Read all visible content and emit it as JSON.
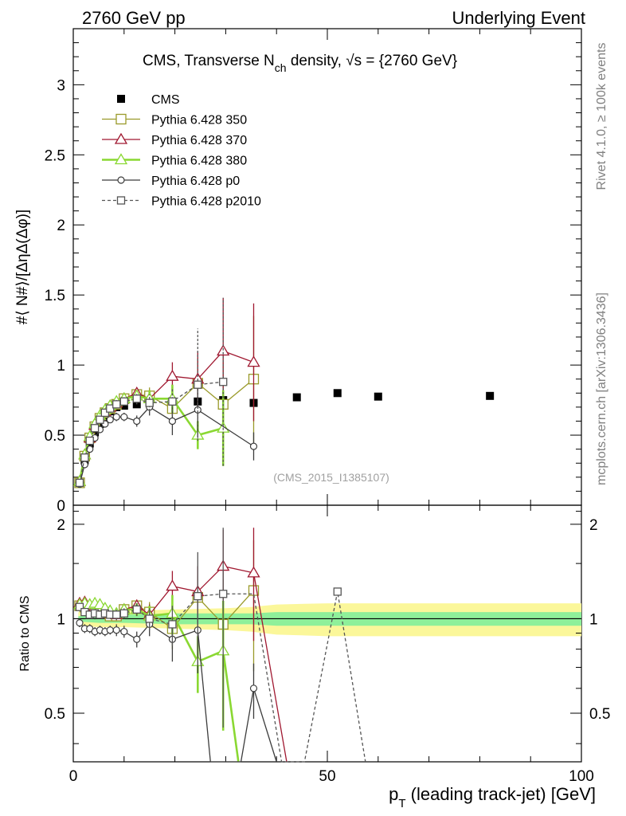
{
  "header": {
    "left": "2760 GeV pp",
    "right": "Underlying Event"
  },
  "side_labels": {
    "rivet": "Rivet 4.1.0, ≥ 100k events",
    "mcplots": "mcplots.cern.ch [arXiv:1306.3436]"
  },
  "chart_data": [
    {
      "type": "scatter",
      "panel": "main",
      "title": "CMS, Transverse N_ch density, √s = {2760 GeV}",
      "title_parts": {
        "a": "CMS, Transverse N",
        "sub": "ch",
        "b": " density, ",
        "c": "s = {2760 GeV}"
      },
      "ylabel": "#⟨ N#⟩/[ΔηΔ(Δφ)]",
      "watermark": "(CMS_2015_I1385107)",
      "xlim": [
        0,
        100
      ],
      "ylim": [
        0,
        3.4
      ],
      "yticks": [
        0,
        0.5,
        1,
        1.5,
        2,
        2.5,
        3
      ],
      "yticklabels": [
        "0",
        "0.5",
        "1",
        "1.5",
        "2",
        "2.5",
        "3"
      ],
      "series": [
        {
          "name": "CMS",
          "key": "cms",
          "color": "#000000",
          "style": "data",
          "x": [
            1.25,
            2.25,
            3.25,
            4.25,
            5.25,
            6.25,
            7.25,
            8.5,
            10,
            12.5,
            15,
            19.5,
            24.5,
            29.5,
            35.5,
            44,
            52,
            60,
            82
          ],
          "y": [
            0.16,
            0.32,
            0.44,
            0.52,
            0.58,
            0.63,
            0.67,
            0.7,
            0.71,
            0.72,
            0.74,
            0.73,
            0.74,
            0.75,
            0.73,
            0.77,
            0.8,
            0.775,
            0.78
          ]
        },
        {
          "name": "Pythia 6.428 350",
          "key": "p350",
          "color": "#9a9a2a",
          "style": "square",
          "x": [
            1.25,
            2.25,
            3.25,
            4.25,
            5.25,
            6.25,
            7.25,
            8.5,
            10,
            12.5,
            15,
            19.5,
            24.5,
            29.5,
            35.5
          ],
          "y": [
            0.16,
            0.35,
            0.48,
            0.56,
            0.62,
            0.66,
            0.69,
            0.72,
            0.76,
            0.79,
            0.78,
            0.69,
            0.87,
            0.72,
            0.9
          ],
          "err": [
            0.01,
            0.02,
            0.02,
            0.02,
            0.02,
            0.02,
            0.02,
            0.03,
            0.03,
            0.04,
            0.06,
            0.1,
            0.18,
            0.3,
            0.45
          ]
        },
        {
          "name": "Pythia 6.428 370",
          "key": "p370",
          "color": "#a01830",
          "style": "triangle",
          "x": [
            1.25,
            2.25,
            3.25,
            4.25,
            5.25,
            6.25,
            7.25,
            8.5,
            10,
            12.5,
            15,
            19.5,
            24.5,
            29.5,
            35.5
          ],
          "y": [
            0.17,
            0.36,
            0.48,
            0.57,
            0.63,
            0.67,
            0.7,
            0.73,
            0.76,
            0.8,
            0.76,
            0.92,
            0.9,
            1.1,
            1.02
          ],
          "err": [
            0.01,
            0.02,
            0.02,
            0.02,
            0.02,
            0.02,
            0.02,
            0.03,
            0.03,
            0.04,
            0.06,
            0.1,
            0.2,
            0.38,
            0.42
          ]
        },
        {
          "name": "Pythia 6.428 380",
          "key": "p380",
          "color": "#8ad832",
          "style": "triangle",
          "x": [
            1.25,
            2.25,
            3.25,
            4.25,
            5.25,
            6.25,
            7.25,
            8.5,
            10,
            12.5,
            15,
            19.5,
            24.5,
            29.5
          ],
          "y": [
            0.17,
            0.36,
            0.49,
            0.58,
            0.64,
            0.68,
            0.71,
            0.74,
            0.76,
            0.78,
            0.76,
            0.76,
            0.5,
            0.55
          ],
          "err": [
            0.01,
            0.02,
            0.02,
            0.02,
            0.02,
            0.02,
            0.02,
            0.03,
            0.03,
            0.04,
            0.06,
            0.1,
            0.1,
            0.27
          ]
        },
        {
          "name": "Pythia 6.428 p0",
          "key": "p0",
          "color": "#3c3c3c",
          "style": "circle",
          "x": [
            1.25,
            2.25,
            3.25,
            4.25,
            5.25,
            6.25,
            7.25,
            8.5,
            10,
            12.5,
            15,
            19.5,
            24.5,
            35.5
          ],
          "y": [
            0.15,
            0.29,
            0.4,
            0.48,
            0.54,
            0.58,
            0.61,
            0.63,
            0.63,
            0.6,
            0.7,
            0.6,
            0.68,
            0.42
          ],
          "err": [
            0.01,
            0.02,
            0.02,
            0.02,
            0.02,
            0.02,
            0.02,
            0.03,
            0.03,
            0.04,
            0.06,
            0.1,
            0.2,
            0.1
          ]
        },
        {
          "name": "Pythia 6.428 p2010",
          "key": "p2010",
          "color": "#555555",
          "style": "dashed-square",
          "x": [
            1.25,
            2.25,
            3.25,
            4.25,
            5.25,
            6.25,
            7.25,
            8.5,
            10,
            12.5,
            15,
            19.5,
            24.5,
            29.5
          ],
          "y": [
            0.16,
            0.34,
            0.46,
            0.55,
            0.61,
            0.66,
            0.69,
            0.72,
            0.74,
            0.76,
            0.73,
            0.74,
            0.86,
            0.88
          ],
          "err": [
            0.01,
            0.02,
            0.02,
            0.02,
            0.02,
            0.02,
            0.02,
            0.03,
            0.03,
            0.04,
            0.06,
            0.1,
            0.4,
            0.6
          ]
        }
      ]
    },
    {
      "type": "line",
      "panel": "ratio",
      "ylabel": "Ratio to CMS",
      "xlabel": "p_T (leading track-jet) [GeV]",
      "xlabel_parts": {
        "a": "p",
        "sub": "T",
        "b": " (leading track-jet) [GeV]"
      },
      "xlim": [
        0,
        100
      ],
      "ylim": [
        0.35,
        2.3
      ],
      "xticks": [
        0,
        50,
        100
      ],
      "xticklabels": [
        "0",
        "50",
        "100"
      ],
      "yticks": [
        0.5,
        1,
        2
      ],
      "yticklabels": [
        "0.5",
        "1",
        "2"
      ],
      "band": {
        "x": [
          1,
          5,
          10,
          20,
          30,
          35,
          40,
          50,
          60,
          70,
          80,
          90,
          100
        ],
        "inner": [
          0.02,
          0.03,
          0.03,
          0.04,
          0.04,
          0.04,
          0.05,
          0.05,
          0.05,
          0.05,
          0.05,
          0.05,
          0.05
        ],
        "outer": [
          0.05,
          0.06,
          0.06,
          0.07,
          0.08,
          0.09,
          0.11,
          0.12,
          0.12,
          0.12,
          0.12,
          0.12,
          0.12
        ]
      },
      "series": [
        {
          "key": "p350",
          "x": [
            1.25,
            2.25,
            3.25,
            4.25,
            5.25,
            6.25,
            7.25,
            8.5,
            10,
            12.5,
            15,
            19.5,
            24.5,
            29.5,
            35.5
          ],
          "y": [
            1.1,
            1.09,
            1.08,
            1.06,
            1.05,
            1.04,
            1.02,
            1.02,
            1.07,
            1.1,
            1.05,
            0.93,
            1.17,
            0.96,
            1.23
          ],
          "err": [
            0.03,
            0.03,
            0.03,
            0.03,
            0.03,
            0.03,
            0.03,
            0.04,
            0.04,
            0.05,
            0.08,
            0.13,
            0.2,
            0.38,
            0.55
          ]
        },
        {
          "key": "p370",
          "x": [
            1.25,
            2.25,
            3.25,
            4.25,
            5.25,
            6.25,
            7.25,
            8.5,
            10,
            12.5,
            15,
            19.5,
            24.5,
            29.5,
            35.5,
            42
          ],
          "y": [
            1.12,
            1.13,
            1.1,
            1.09,
            1.09,
            1.06,
            1.04,
            1.03,
            1.07,
            1.1,
            1.03,
            1.27,
            1.22,
            1.47,
            1.4,
            0.3
          ],
          "err": [
            0.03,
            0.03,
            0.03,
            0.03,
            0.03,
            0.03,
            0.03,
            0.04,
            0.04,
            0.05,
            0.08,
            0.15,
            0.25,
            0.45,
            0.55,
            0
          ]
        },
        {
          "key": "p380",
          "x": [
            1.25,
            2.25,
            3.25,
            4.25,
            5.25,
            6.25,
            7.25,
            8.5,
            10,
            12.5,
            15,
            19.5,
            24.5,
            29.5,
            32.5
          ],
          "y": [
            1.11,
            1.12,
            1.11,
            1.12,
            1.11,
            1.08,
            1.06,
            1.04,
            1.07,
            1.07,
            1.02,
            1.04,
            0.73,
            0.79,
            0.3
          ],
          "err": [
            0.03,
            0.03,
            0.03,
            0.03,
            0.03,
            0.03,
            0.03,
            0.04,
            0.04,
            0.05,
            0.08,
            0.15,
            0.15,
            0.35,
            0
          ]
        },
        {
          "key": "p0",
          "x": [
            1.25,
            2.25,
            3.25,
            4.25,
            5.25,
            6.25,
            7.25,
            8.5,
            10,
            12.5,
            15,
            19.5,
            24.5,
            27,
            33,
            35.5,
            40
          ],
          "y": [
            0.97,
            0.93,
            0.93,
            0.91,
            0.92,
            0.91,
            0.92,
            0.92,
            0.91,
            0.86,
            0.96,
            0.86,
            0.92,
            0.3,
            0.3,
            0.6,
            0.3
          ],
          "err": [
            0.03,
            0.03,
            0.03,
            0.03,
            0.03,
            0.03,
            0.03,
            0.04,
            0.04,
            0.05,
            0.08,
            0.13,
            0.25,
            0,
            0,
            0.12,
            0
          ]
        },
        {
          "key": "p2010",
          "x": [
            1.25,
            2.25,
            3.25,
            4.25,
            5.25,
            6.25,
            7.25,
            8.5,
            10,
            12.5,
            15,
            19.5,
            24.5,
            29.5,
            35.5,
            41,
            45.5,
            52,
            57.5
          ],
          "y": [
            1.09,
            1.05,
            1.03,
            1.04,
            1.03,
            1.04,
            1.03,
            1.03,
            1.04,
            1.07,
            1.0,
            0.96,
            1.18,
            1.2,
            1.2,
            0.3,
            0.3,
            1.22,
            0.3
          ],
          "err": [
            0.03,
            0.03,
            0.03,
            0.03,
            0.03,
            0.03,
            0.03,
            0.04,
            0.04,
            0.05,
            0.08,
            0.14,
            0.45,
            0.75,
            0,
            0,
            0,
            0,
            0
          ]
        }
      ]
    }
  ]
}
